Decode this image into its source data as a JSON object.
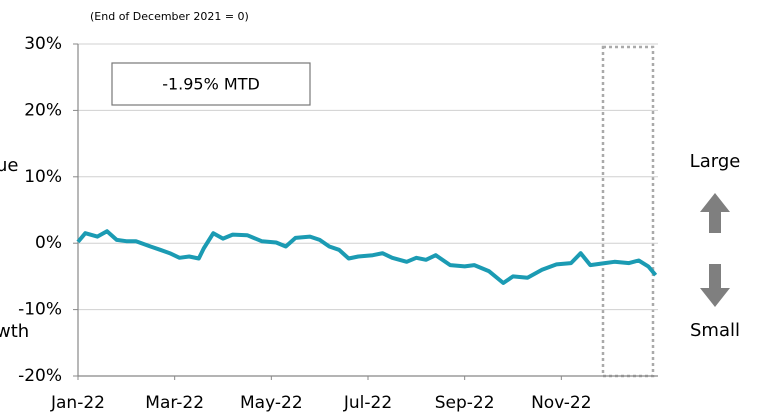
{
  "chart_data": {
    "type": "line",
    "subtitle": "(End of December 2021 = 0)",
    "annotation": "-1.95% MTD",
    "right_labels": {
      "top": "Large",
      "bottom": "Small"
    },
    "left_labels": {
      "top": "ue",
      "bottom": "wth"
    },
    "xlim": [
      0,
      12
    ],
    "xticks": [
      {
        "value": 0,
        "label": "Jan-22"
      },
      {
        "value": 2,
        "label": "Mar-22"
      },
      {
        "value": 4,
        "label": "May-22"
      },
      {
        "value": 6,
        "label": "Jul-22"
      },
      {
        "value": 8,
        "label": "Sep-22"
      },
      {
        "value": 10,
        "label": "Nov-22"
      }
    ],
    "ylim": [
      -20,
      30
    ],
    "yticks": [
      {
        "value": -20,
        "label": "-20%"
      },
      {
        "value": -10,
        "label": "-10%"
      },
      {
        "value": 0,
        "label": "0%"
      },
      {
        "value": 10,
        "label": "10%"
      },
      {
        "value": 20,
        "label": "20%"
      },
      {
        "value": 30,
        "label": "30%"
      }
    ],
    "grid": true,
    "series": [
      {
        "color": "#1b9bb3",
        "x": [
          0,
          0.15,
          0.4,
          0.6,
          0.8,
          1.0,
          1.2,
          1.5,
          1.7,
          1.9,
          2.1,
          2.3,
          2.5,
          2.6,
          2.8,
          3.0,
          3.2,
          3.5,
          3.8,
          4.1,
          4.3,
          4.5,
          4.8,
          5.0,
          5.2,
          5.4,
          5.6,
          5.8,
          6.1,
          6.3,
          6.5,
          6.8,
          7.0,
          7.2,
          7.4,
          7.7,
          8.0,
          8.2,
          8.5,
          8.8,
          9.0,
          9.3,
          9.6,
          9.9,
          10.2,
          10.4,
          10.6,
          10.9,
          11.1,
          11.4,
          11.6,
          11.8,
          11.95
        ],
        "values": [
          0.2,
          1.5,
          1.0,
          1.8,
          0.5,
          0.3,
          0.3,
          -0.5,
          -1.0,
          -1.5,
          -2.2,
          -2.0,
          -2.3,
          -0.8,
          1.5,
          0.7,
          1.3,
          1.2,
          0.3,
          0.1,
          -0.5,
          0.8,
          1.0,
          0.5,
          -0.5,
          -1.0,
          -2.3,
          -2.0,
          -1.8,
          -1.5,
          -2.2,
          -2.8,
          -2.2,
          -2.5,
          -1.8,
          -3.3,
          -3.5,
          -3.3,
          -4.2,
          -6.0,
          -5.0,
          -5.2,
          -4.0,
          -3.2,
          -3.0,
          -1.5,
          -3.3,
          -3.0,
          -2.8,
          -3.0,
          -2.6,
          -3.5,
          -4.8
        ]
      }
    ]
  }
}
